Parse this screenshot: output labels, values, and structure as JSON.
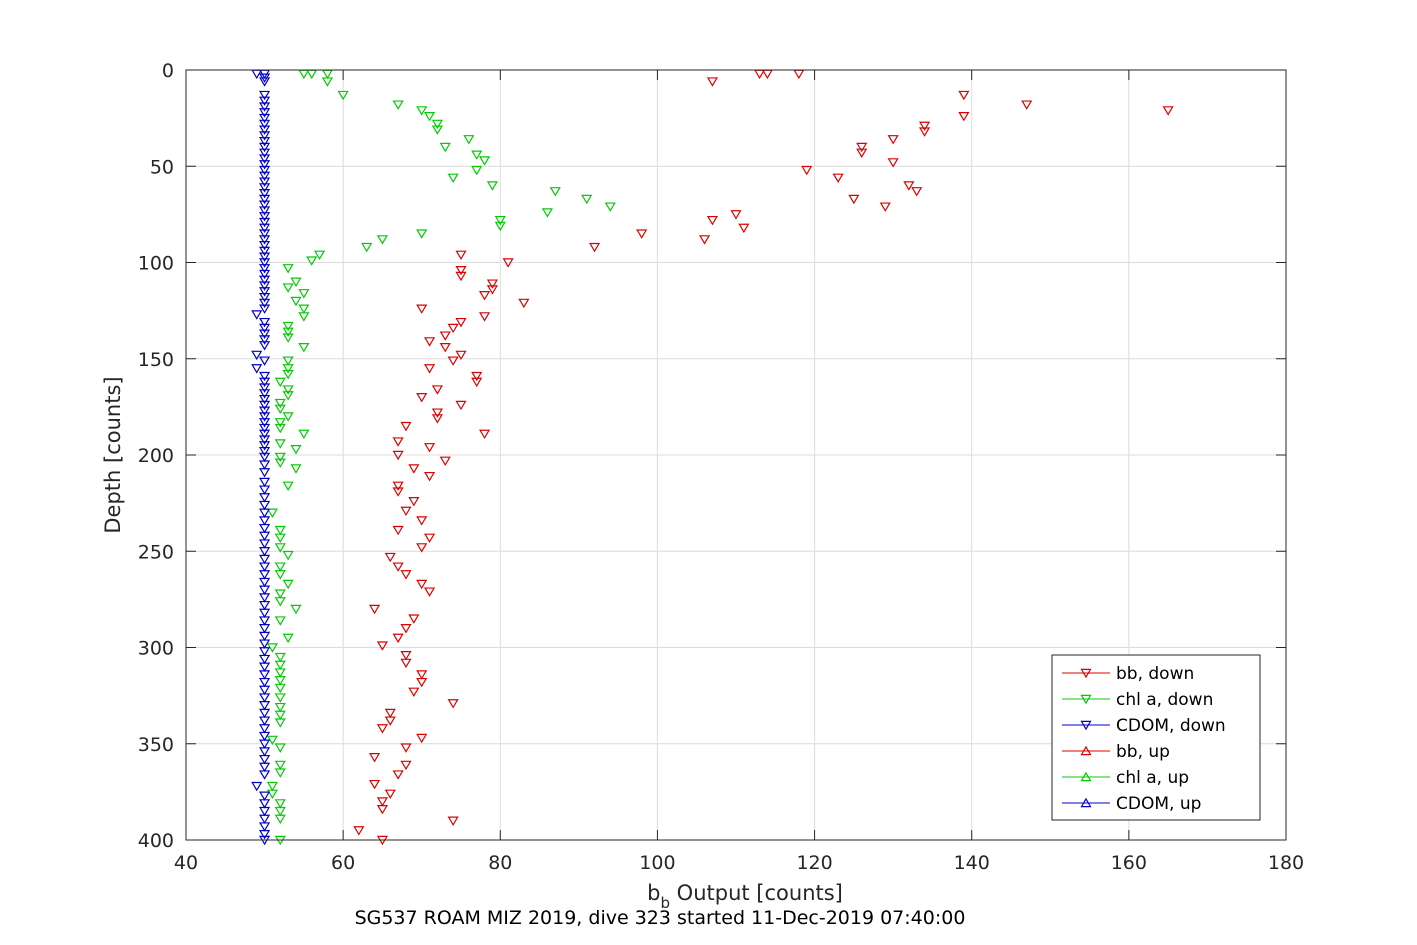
{
  "chart_data": {
    "type": "scatter",
    "xlabel_main": "b",
    "xlabel_sub": "b",
    "xlabel_rest": " Output [counts]",
    "ylabel": "Depth [counts]",
    "caption": "SG537 ROAM MIZ 2019, dive 323 started 11-Dec-2019 07:40:00",
    "xlim": [
      40,
      180
    ],
    "ylim": [
      0,
      400
    ],
    "y_reversed": true,
    "grid": true,
    "legend_position": "bottom-right",
    "xticks": [
      "40",
      "60",
      "80",
      "100",
      "120",
      "140",
      "160",
      "180"
    ],
    "yticks": [
      "0",
      "50",
      "100",
      "150",
      "200",
      "250",
      "300",
      "350",
      "400"
    ],
    "series": [
      {
        "name": "bb, down",
        "color": "#dd0000",
        "marker": "triangle-down",
        "points": [
          [
            113,
            2
          ],
          [
            114,
            2
          ],
          [
            118,
            2
          ],
          [
            107,
            6
          ],
          [
            139,
            13
          ],
          [
            147,
            18
          ],
          [
            165,
            21
          ],
          [
            139,
            24
          ],
          [
            134,
            29
          ],
          [
            134,
            32
          ],
          [
            130,
            36
          ],
          [
            126,
            40
          ],
          [
            126,
            43
          ],
          [
            130,
            48
          ],
          [
            119,
            52
          ],
          [
            123,
            56
          ],
          [
            132,
            60
          ],
          [
            133,
            63
          ],
          [
            125,
            67
          ],
          [
            129,
            71
          ],
          [
            110,
            75
          ],
          [
            107,
            78
          ],
          [
            111,
            82
          ],
          [
            98,
            85
          ],
          [
            106,
            88
          ],
          [
            92,
            92
          ],
          [
            75,
            96
          ],
          [
            81,
            100
          ],
          [
            75,
            104
          ],
          [
            75,
            107
          ],
          [
            79,
            111
          ],
          [
            79,
            114
          ],
          [
            78,
            117
          ],
          [
            83,
            121
          ],
          [
            70,
            124
          ],
          [
            78,
            128
          ],
          [
            75,
            131
          ],
          [
            74,
            134
          ],
          [
            73,
            138
          ],
          [
            71,
            141
          ],
          [
            73,
            144
          ],
          [
            75,
            148
          ],
          [
            74,
            151
          ],
          [
            71,
            155
          ],
          [
            77,
            159
          ],
          [
            77,
            162
          ],
          [
            72,
            166
          ],
          [
            70,
            170
          ],
          [
            75,
            174
          ],
          [
            72,
            178
          ],
          [
            72,
            181
          ],
          [
            68,
            185
          ],
          [
            78,
            189
          ],
          [
            67,
            193
          ],
          [
            71,
            196
          ],
          [
            67,
            200
          ],
          [
            73,
            203
          ],
          [
            69,
            207
          ],
          [
            71,
            211
          ],
          [
            67,
            216
          ],
          [
            67,
            219
          ],
          [
            69,
            224
          ],
          [
            68,
            229
          ],
          [
            70,
            234
          ],
          [
            67,
            239
          ],
          [
            71,
            243
          ],
          [
            70,
            248
          ],
          [
            66,
            253
          ],
          [
            67,
            258
          ],
          [
            68,
            262
          ],
          [
            70,
            267
          ],
          [
            71,
            271
          ],
          [
            64,
            280
          ],
          [
            69,
            285
          ],
          [
            68,
            290
          ],
          [
            67,
            295
          ],
          [
            65,
            299
          ],
          [
            68,
            304
          ],
          [
            68,
            308
          ],
          [
            70,
            314
          ],
          [
            70,
            318
          ],
          [
            69,
            323
          ],
          [
            74,
            329
          ],
          [
            66,
            334
          ],
          [
            66,
            338
          ],
          [
            65,
            342
          ],
          [
            70,
            347
          ],
          [
            68,
            352
          ],
          [
            64,
            357
          ],
          [
            68,
            361
          ],
          [
            67,
            366
          ],
          [
            64,
            371
          ],
          [
            66,
            376
          ],
          [
            65,
            380
          ],
          [
            65,
            384
          ],
          [
            74,
            390
          ],
          [
            62,
            395
          ],
          [
            65,
            400
          ]
        ]
      },
      {
        "name": "chl a, down",
        "color": "#00cc00",
        "marker": "triangle-down",
        "points": [
          [
            55,
            2
          ],
          [
            56,
            2
          ],
          [
            58,
            2
          ],
          [
            58,
            6
          ],
          [
            60,
            13
          ],
          [
            67,
            18
          ],
          [
            70,
            21
          ],
          [
            71,
            24
          ],
          [
            72,
            28
          ],
          [
            72,
            31
          ],
          [
            76,
            36
          ],
          [
            73,
            40
          ],
          [
            77,
            44
          ],
          [
            78,
            47
          ],
          [
            77,
            52
          ],
          [
            74,
            56
          ],
          [
            79,
            60
          ],
          [
            87,
            63
          ],
          [
            91,
            67
          ],
          [
            94,
            71
          ],
          [
            86,
            74
          ],
          [
            80,
            78
          ],
          [
            80,
            81
          ],
          [
            70,
            85
          ],
          [
            65,
            88
          ],
          [
            63,
            92
          ],
          [
            57,
            96
          ],
          [
            56,
            99
          ],
          [
            53,
            103
          ],
          [
            54,
            110
          ],
          [
            53,
            113
          ],
          [
            55,
            116
          ],
          [
            54,
            120
          ],
          [
            55,
            124
          ],
          [
            55,
            128
          ],
          [
            53,
            133
          ],
          [
            53,
            136
          ],
          [
            53,
            139
          ],
          [
            55,
            144
          ],
          [
            53,
            151
          ],
          [
            53,
            155
          ],
          [
            53,
            158
          ],
          [
            52,
            162
          ],
          [
            53,
            166
          ],
          [
            53,
            169
          ],
          [
            52,
            173
          ],
          [
            52,
            176
          ],
          [
            53,
            180
          ],
          [
            52,
            183
          ],
          [
            52,
            186
          ],
          [
            55,
            189
          ],
          [
            52,
            194
          ],
          [
            54,
            197
          ],
          [
            52,
            201
          ],
          [
            52,
            204
          ],
          [
            54,
            207
          ],
          [
            53,
            216
          ],
          [
            51,
            230
          ],
          [
            52,
            239
          ],
          [
            52,
            243
          ],
          [
            52,
            248
          ],
          [
            53,
            252
          ],
          [
            52,
            258
          ],
          [
            52,
            262
          ],
          [
            53,
            267
          ],
          [
            52,
            272
          ],
          [
            52,
            276
          ],
          [
            54,
            280
          ],
          [
            52,
            286
          ],
          [
            53,
            295
          ],
          [
            51,
            300
          ],
          [
            52,
            305
          ],
          [
            52,
            309
          ],
          [
            52,
            313
          ],
          [
            52,
            317
          ],
          [
            52,
            321
          ],
          [
            52,
            326
          ],
          [
            52,
            331
          ],
          [
            52,
            335
          ],
          [
            52,
            339
          ],
          [
            51,
            348
          ],
          [
            52,
            352
          ],
          [
            52,
            361
          ],
          [
            52,
            365
          ],
          [
            51,
            372
          ],
          [
            51,
            376
          ],
          [
            52,
            381
          ],
          [
            52,
            385
          ],
          [
            52,
            389
          ],
          [
            52,
            400
          ]
        ]
      },
      {
        "name": "CDOM, down",
        "color": "#0000cc",
        "marker": "triangle-down",
        "points": [
          [
            49,
            2
          ],
          [
            50,
            2
          ],
          [
            50,
            4
          ],
          [
            50,
            6
          ],
          [
            50,
            13
          ],
          [
            50,
            16
          ],
          [
            50,
            19
          ],
          [
            50,
            22
          ],
          [
            50,
            25
          ],
          [
            50,
            28
          ],
          [
            50,
            31
          ],
          [
            50,
            34
          ],
          [
            50,
            37
          ],
          [
            50,
            40
          ],
          [
            50,
            43
          ],
          [
            50,
            46
          ],
          [
            50,
            49
          ],
          [
            50,
            52
          ],
          [
            50,
            55
          ],
          [
            50,
            58
          ],
          [
            50,
            61
          ],
          [
            50,
            64
          ],
          [
            50,
            67
          ],
          [
            50,
            70
          ],
          [
            50,
            73
          ],
          [
            50,
            76
          ],
          [
            50,
            79
          ],
          [
            50,
            82
          ],
          [
            50,
            85
          ],
          [
            50,
            88
          ],
          [
            50,
            91
          ],
          [
            50,
            94
          ],
          [
            50,
            97
          ],
          [
            50,
            100
          ],
          [
            50,
            103
          ],
          [
            50,
            106
          ],
          [
            50,
            109
          ],
          [
            50,
            112
          ],
          [
            50,
            115
          ],
          [
            50,
            118
          ],
          [
            50,
            121
          ],
          [
            50,
            124
          ],
          [
            49,
            127
          ],
          [
            50,
            131
          ],
          [
            50,
            134
          ],
          [
            50,
            137
          ],
          [
            50,
            140
          ],
          [
            50,
            143
          ],
          [
            49,
            148
          ],
          [
            50,
            151
          ],
          [
            49,
            155
          ],
          [
            50,
            159
          ],
          [
            50,
            162
          ],
          [
            50,
            165
          ],
          [
            50,
            168
          ],
          [
            50,
            171
          ],
          [
            50,
            174
          ],
          [
            50,
            177
          ],
          [
            50,
            180
          ],
          [
            50,
            183
          ],
          [
            50,
            186
          ],
          [
            50,
            189
          ],
          [
            50,
            192
          ],
          [
            50,
            195
          ],
          [
            50,
            198
          ],
          [
            50,
            201
          ],
          [
            50,
            205
          ],
          [
            50,
            209
          ],
          [
            50,
            214
          ],
          [
            50,
            218
          ],
          [
            50,
            222
          ],
          [
            50,
            226
          ],
          [
            50,
            230
          ],
          [
            50,
            234
          ],
          [
            50,
            238
          ],
          [
            50,
            242
          ],
          [
            50,
            246
          ],
          [
            50,
            250
          ],
          [
            50,
            254
          ],
          [
            50,
            258
          ],
          [
            50,
            262
          ],
          [
            50,
            266
          ],
          [
            50,
            270
          ],
          [
            50,
            274
          ],
          [
            50,
            278
          ],
          [
            50,
            282
          ],
          [
            50,
            286
          ],
          [
            50,
            290
          ],
          [
            50,
            294
          ],
          [
            50,
            298
          ],
          [
            50,
            302
          ],
          [
            50,
            306
          ],
          [
            50,
            310
          ],
          [
            50,
            314
          ],
          [
            50,
            318
          ],
          [
            50,
            322
          ],
          [
            50,
            326
          ],
          [
            50,
            330
          ],
          [
            50,
            334
          ],
          [
            50,
            338
          ],
          [
            50,
            342
          ],
          [
            50,
            346
          ],
          [
            50,
            350
          ],
          [
            50,
            354
          ],
          [
            50,
            358
          ],
          [
            50,
            362
          ],
          [
            50,
            366
          ],
          [
            49,
            372
          ],
          [
            50,
            377
          ],
          [
            50,
            381
          ],
          [
            50,
            385
          ],
          [
            50,
            389
          ],
          [
            50,
            393
          ],
          [
            50,
            397
          ],
          [
            50,
            400
          ]
        ]
      },
      {
        "name": "bb, up",
        "color": "#dd0000",
        "marker": "triangle-up",
        "points": []
      },
      {
        "name": "chl a, up",
        "color": "#00cc00",
        "marker": "triangle-up",
        "points": []
      },
      {
        "name": "CDOM, up",
        "color": "#0000cc",
        "marker": "triangle-up",
        "points": []
      }
    ]
  }
}
